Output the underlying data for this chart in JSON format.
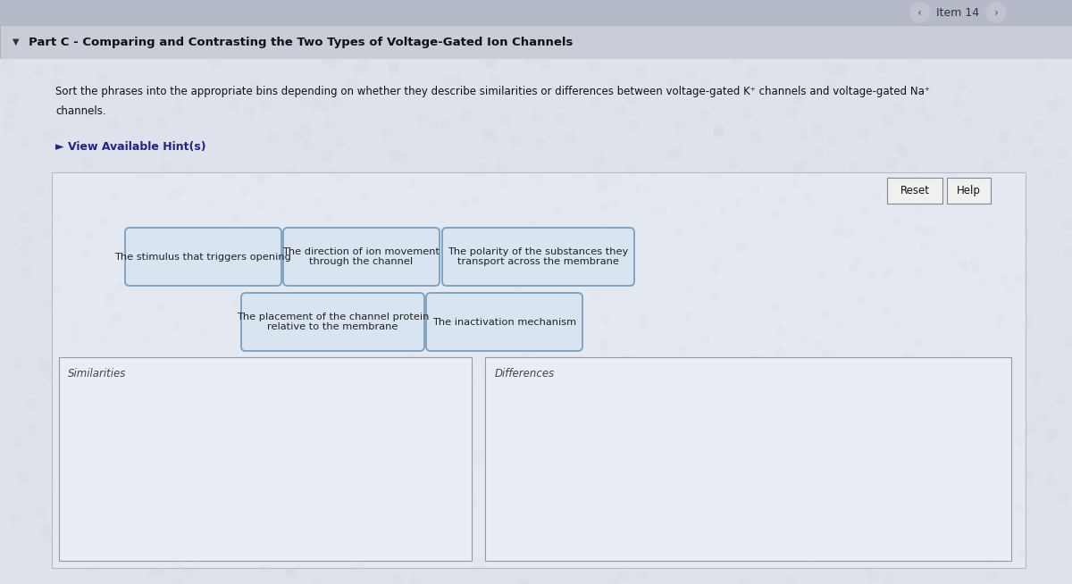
{
  "title_bar_text": "Part C - Comparing and Contrasting the Two Types of Voltage-Gated Ion Channels",
  "item_label": "Item 14",
  "instruction_line1": "Sort the phrases into the appropriate bins depending on whether they describe similarities or differences between voltage-gated K⁺ channels and voltage-gated Na⁺",
  "instruction_line2": "channels.",
  "hint_text": "► View Available Hint(s)",
  "reset_btn": "Reset",
  "help_btn": "Help",
  "phrase_cards": [
    {
      "text": "The stimulus that triggers opening",
      "row": 0,
      "col": 0
    },
    {
      "text": "The direction of ion movement\nthrough the channel",
      "row": 0,
      "col": 1
    },
    {
      "text": "The polarity of the substances they\ntransport across the membrane",
      "row": 0,
      "col": 2
    },
    {
      "text": "The placement of the channel protein\nrelative to the membrane",
      "row": 1,
      "col": 1
    },
    {
      "text": "The inactivation mechanism",
      "row": 1,
      "col": 2
    }
  ],
  "bins": [
    {
      "label": "Similarities"
    },
    {
      "label": "Differences"
    }
  ],
  "bg_color": "#dde2eb",
  "card_fill": "#d8e4ef",
  "card_border": "#7a9fc0",
  "card_text_color": "#222222",
  "bin_fill": "#eaedf3",
  "bin_border": "#999999",
  "bin_label_color": "#444444",
  "panel_fill": "#e4e8f0",
  "panel_border": "#bbbbbb",
  "title_bar_fill": "#c8cdd8",
  "title_text_color": "#111111",
  "outer_fill": "#c0c5d2",
  "top_strip_fill": "#b5bac8",
  "hint_color": "#222288",
  "btn_fill": "#f0f0f0",
  "btn_border": "#888888"
}
